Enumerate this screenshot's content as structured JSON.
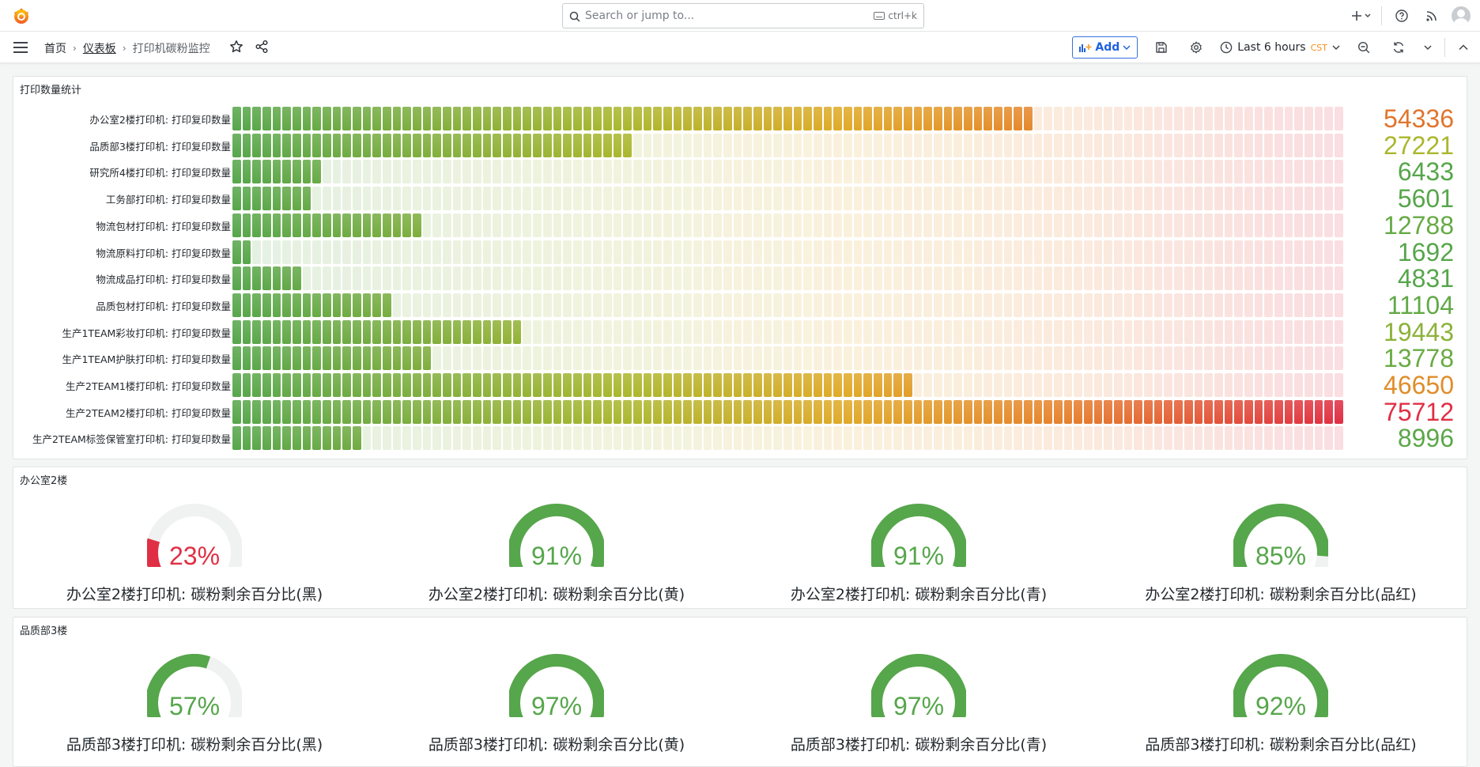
{
  "topbar": {
    "search_placeholder": "Search or jump to...",
    "search_shortcut": "ctrl+k"
  },
  "breadcrumb": {
    "home": "首页",
    "dashboards": "仪表板",
    "current": "打印机碳粉监控"
  },
  "toolbar": {
    "add_label": "Add",
    "time_range": "Last 6 hours",
    "timezone": "CST"
  },
  "print_panel": {
    "title": "打印数量统计",
    "max": 75712,
    "rows": [
      {
        "label": "办公室2楼打印机: 打印复印数量",
        "value": "54336",
        "num": 54336,
        "color": "#e0752d"
      },
      {
        "label": "品质部3楼打印机: 打印复印数量",
        "value": "27221",
        "num": 27221,
        "color": "#aab72d"
      },
      {
        "label": "研究所4楼打印机: 打印复印数量",
        "value": "6433",
        "num": 6433,
        "color": "#56a64b"
      },
      {
        "label": "工务部打印机: 打印复印数量",
        "value": "5601",
        "num": 5601,
        "color": "#56a64b"
      },
      {
        "label": "物流包材打印机: 打印复印数量",
        "value": "12788",
        "num": 12788,
        "color": "#66aa45"
      },
      {
        "label": "物流原料打印机: 打印复印数量",
        "value": "1692",
        "num": 1692,
        "color": "#56a64b"
      },
      {
        "label": "物流成品打印机: 打印复印数量",
        "value": "4831",
        "num": 4831,
        "color": "#56a64b"
      },
      {
        "label": "品质包材打印机: 打印复印数量",
        "value": "11104",
        "num": 11104,
        "color": "#62a947"
      },
      {
        "label": "生产1TEAM彩妆打印机: 打印复印数量",
        "value": "19443",
        "num": 19443,
        "color": "#8cb23a"
      },
      {
        "label": "生产1TEAM护肤打印机: 打印复印数量",
        "value": "13778",
        "num": 13778,
        "color": "#6aab44"
      },
      {
        "label": "生产2TEAM1楼打印机: 打印复印数量",
        "value": "46650",
        "num": 46650,
        "color": "#e08d2a"
      },
      {
        "label": "生产2TEAM2楼打印机: 打印复印数量",
        "value": "75712",
        "num": 75712,
        "color": "#e02f44"
      },
      {
        "label": "生产2TEAM标签保管室打印机: 打印复印数量",
        "value": "8996",
        "num": 8996,
        "color": "#5ca749"
      }
    ]
  },
  "office_panel": {
    "title": "办公室2楼",
    "gauges": [
      {
        "label": "办公室2楼打印机: 碳粉剩余百分比(黑)",
        "value": "23%",
        "pct": 23,
        "color": "#e02f44"
      },
      {
        "label": "办公室2楼打印机: 碳粉剩余百分比(黄)",
        "value": "91%",
        "pct": 91,
        "color": "#56a64b"
      },
      {
        "label": "办公室2楼打印机: 碳粉剩余百分比(青)",
        "value": "91%",
        "pct": 91,
        "color": "#56a64b"
      },
      {
        "label": "办公室2楼打印机: 碳粉剩余百分比(品红)",
        "value": "85%",
        "pct": 85,
        "color": "#56a64b"
      }
    ]
  },
  "quality_panel": {
    "title": "品质部3楼",
    "gauges": [
      {
        "label": "品质部3楼打印机: 碳粉剩余百分比(黑)",
        "value": "57%",
        "pct": 57,
        "color": "#56a64b"
      },
      {
        "label": "品质部3楼打印机: 碳粉剩余百分比(黄)",
        "value": "97%",
        "pct": 97,
        "color": "#56a64b"
      },
      {
        "label": "品质部3楼打印机: 碳粉剩余百分比(青)",
        "value": "97%",
        "pct": 97,
        "color": "#56a64b"
      },
      {
        "label": "品质部3楼打印机: 碳粉剩余百分比(品红)",
        "value": "92%",
        "pct": 92,
        "color": "#56a64b"
      }
    ]
  }
}
